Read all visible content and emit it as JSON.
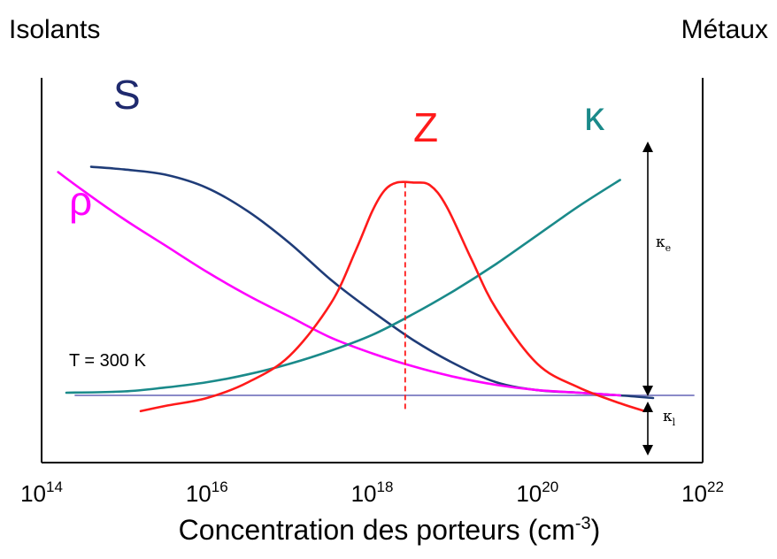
{
  "chart_data": {
    "type": "line",
    "header_left": "Isolants",
    "header_right": "Métaux",
    "xlabel_main": "Concentration des porteurs (cm",
    "xlabel_sup": "-3",
    "xlabel_close": ")",
    "x_scale": "log",
    "xlim": [
      100000000000000.0,
      1e+22
    ],
    "x_ticks": [
      {
        "value": 100000000000000.0,
        "base": "10",
        "exp": "14"
      },
      {
        "value": 1e+16,
        "base": "10",
        "exp": "16"
      },
      {
        "value": 1e+18,
        "base": "10",
        "exp": "18"
      },
      {
        "value": 1e+20,
        "base": "10",
        "exp": "20"
      },
      {
        "value": 1e+22,
        "base": "10",
        "exp": "22"
      }
    ],
    "y_axis": "qualitative (no ticks)",
    "annotation_temperature": "T = 300 K",
    "series": [
      {
        "name": "S",
        "color": "#1f3c78",
        "points": [
          [
            14.6,
            0.87
          ],
          [
            15.0,
            0.86
          ],
          [
            15.5,
            0.84
          ],
          [
            16.0,
            0.79
          ],
          [
            16.5,
            0.7
          ],
          [
            17.0,
            0.58
          ],
          [
            17.5,
            0.44
          ],
          [
            18.0,
            0.32
          ],
          [
            18.5,
            0.21
          ],
          [
            19.0,
            0.12
          ],
          [
            19.5,
            0.05
          ],
          [
            20.0,
            0.02
          ],
          [
            20.5,
            0.01
          ],
          [
            21.0,
            0.0
          ],
          [
            21.4,
            -0.01
          ]
        ]
      },
      {
        "name": "ρ",
        "color": "#ff00ff",
        "points": [
          [
            14.2,
            0.85
          ],
          [
            14.5,
            0.78
          ],
          [
            15.0,
            0.67
          ],
          [
            15.5,
            0.57
          ],
          [
            16.0,
            0.47
          ],
          [
            16.5,
            0.38
          ],
          [
            17.0,
            0.3
          ],
          [
            17.5,
            0.22
          ],
          [
            18.0,
            0.16
          ],
          [
            18.5,
            0.11
          ],
          [
            19.0,
            0.07
          ],
          [
            19.5,
            0.04
          ],
          [
            20.0,
            0.02
          ],
          [
            20.5,
            0.01
          ],
          [
            21.0,
            0.0
          ]
        ]
      },
      {
        "name": "κ",
        "color": "#1a8a8a",
        "points": [
          [
            14.3,
            0.01
          ],
          [
            15.0,
            0.015
          ],
          [
            15.5,
            0.03
          ],
          [
            16.0,
            0.05
          ],
          [
            16.5,
            0.08
          ],
          [
            17.0,
            0.12
          ],
          [
            17.5,
            0.17
          ],
          [
            18.0,
            0.23
          ],
          [
            18.5,
            0.31
          ],
          [
            19.0,
            0.4
          ],
          [
            19.5,
            0.5
          ],
          [
            20.0,
            0.61
          ],
          [
            20.5,
            0.72
          ],
          [
            21.0,
            0.82
          ]
        ]
      },
      {
        "name": "Z",
        "color": "#ff1a1a",
        "points": [
          [
            15.2,
            -0.06
          ],
          [
            15.5,
            -0.04
          ],
          [
            16.0,
            -0.01
          ],
          [
            16.5,
            0.05
          ],
          [
            17.0,
            0.15
          ],
          [
            17.5,
            0.35
          ],
          [
            17.8,
            0.55
          ],
          [
            18.0,
            0.7
          ],
          [
            18.15,
            0.78
          ],
          [
            18.3,
            0.81
          ],
          [
            18.5,
            0.81
          ],
          [
            18.7,
            0.8
          ],
          [
            18.9,
            0.72
          ],
          [
            19.2,
            0.52
          ],
          [
            19.5,
            0.33
          ],
          [
            20.0,
            0.12
          ],
          [
            20.5,
            0.03
          ],
          [
            21.0,
            -0.03
          ],
          [
            21.3,
            -0.06
          ]
        ]
      }
    ],
    "baseline": {
      "color": "#8a8ac8",
      "y": 0.0
    },
    "z_peak_marker": {
      "x": 18.4,
      "style": "dashed",
      "color": "#ff1a1a"
    },
    "kappa_breakdown": {
      "kappa_e_label": "κ",
      "kappa_e_sub": "e",
      "kappa_l_label": "κ",
      "kappa_l_sub": "l"
    },
    "label_S": "S",
    "label_rho": "ρ",
    "label_kappa": "κ",
    "label_Z": "Z"
  }
}
